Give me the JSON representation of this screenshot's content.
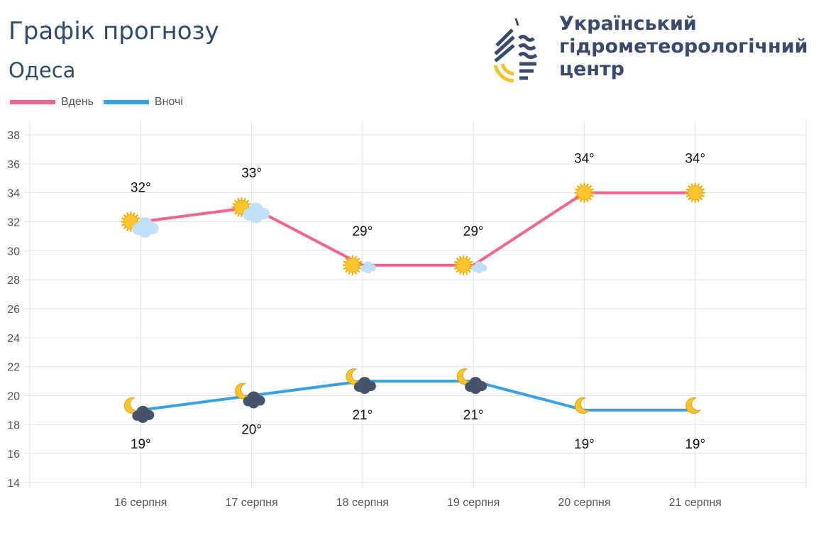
{
  "header": {
    "title": "Графік прогнозу",
    "city": "Одеса"
  },
  "org": {
    "line1": "Український",
    "line2": "гідрометеорологічний",
    "line3": "центр",
    "colors": {
      "navy": "#3b4a6b",
      "yellow": "#f2c12e"
    }
  },
  "chart_data": {
    "type": "line",
    "categories": [
      "16 серпня",
      "17 серпня",
      "18 серпня",
      "19 серпня",
      "20 серпня",
      "21 серпня"
    ],
    "series": [
      {
        "name": "Вдень",
        "color": "#f0668a",
        "values": [
          32,
          33,
          29,
          29,
          34,
          34
        ],
        "labels": [
          "32°",
          "33°",
          "29°",
          "29°",
          "34°",
          "34°"
        ],
        "icons": [
          "sun-cloud",
          "sun-cloud",
          "sun-small-cloud",
          "sun-small-cloud",
          "sun",
          "sun"
        ]
      },
      {
        "name": "Вночі",
        "color": "#3aa0e4",
        "values": [
          19,
          20,
          21,
          21,
          19,
          19
        ],
        "labels": [
          "19°",
          "20°",
          "21°",
          "21°",
          "19°",
          "19°"
        ],
        "icons": [
          "moon-dark-cloud",
          "moon-dark-cloud",
          "moon-dark-cloud",
          "moon-dark-cloud",
          "moon",
          "moon"
        ]
      }
    ],
    "ylim": [
      14,
      38
    ],
    "yticks": [
      14,
      16,
      18,
      20,
      22,
      24,
      26,
      28,
      30,
      32,
      34,
      36,
      38
    ],
    "grid": true,
    "legend": "top-left"
  }
}
